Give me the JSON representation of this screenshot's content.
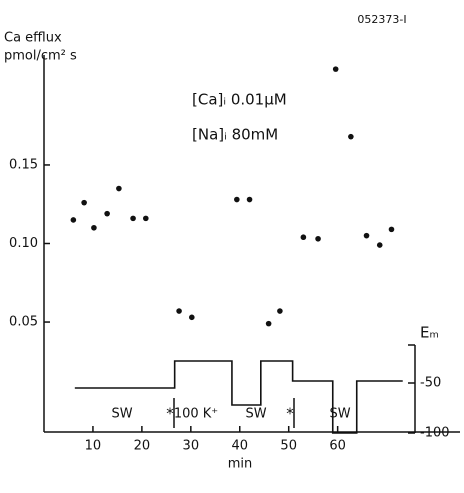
{
  "chart_data": {
    "type": "scatter",
    "figure_id": "052373-I",
    "title": "Ca efflux",
    "ylabel": "pmol/cm² s",
    "xlabel": "min",
    "y2label": "Eₘ",
    "annotations": [
      "[Ca]ᵢ 0.01μM",
      "[Na]ᵢ 80mM"
    ],
    "period_labels": [
      "SW",
      "100 K⁺",
      "SW",
      "SW"
    ],
    "markers": [
      "*",
      "*"
    ],
    "xlim": [
      0,
      85
    ],
    "xticks": [
      10,
      20,
      30,
      40,
      50,
      60
    ],
    "ylim": [
      -0.02,
      0.22
    ],
    "yticks": [
      0.05,
      {
        "value": 0.1,
        "label": "0.10"
      },
      0.15
    ],
    "y2lim": [
      -100,
      -12
    ],
    "y2ticks": [
      -50,
      -100
    ],
    "series": [
      {
        "color": "#111111",
        "x": [
          6,
          8.2,
          10.2,
          12.9,
          15.3,
          18.2,
          20.8,
          27.6,
          30.2,
          39.4,
          42,
          45.9,
          48.2,
          53,
          56,
          59.6,
          62.7,
          65.9,
          68.6,
          71
        ],
        "values": [
          0.115,
          0.126,
          0.11,
          0.119,
          0.135,
          0.116,
          0.116,
          0.057,
          0.053,
          0.128,
          0.128,
          0.049,
          0.057,
          0.104,
          0.103,
          0.211,
          0.168,
          0.105,
          0.099,
          0.109
        ]
      },
      {
        "type": "line",
        "axis": "y2",
        "color": "#111111",
        "x": [
          6.3,
          26.7,
          26.7,
          38.4,
          38.4,
          44.3,
          44.3,
          50.8,
          50.8,
          59,
          59,
          63.9,
          63.9,
          73.3
        ],
        "values": [
          -55,
          -55,
          -28,
          -28,
          -72,
          -72,
          -28,
          -28,
          -48,
          -48,
          -100,
          -100,
          -48,
          -48
        ]
      }
    ]
  }
}
